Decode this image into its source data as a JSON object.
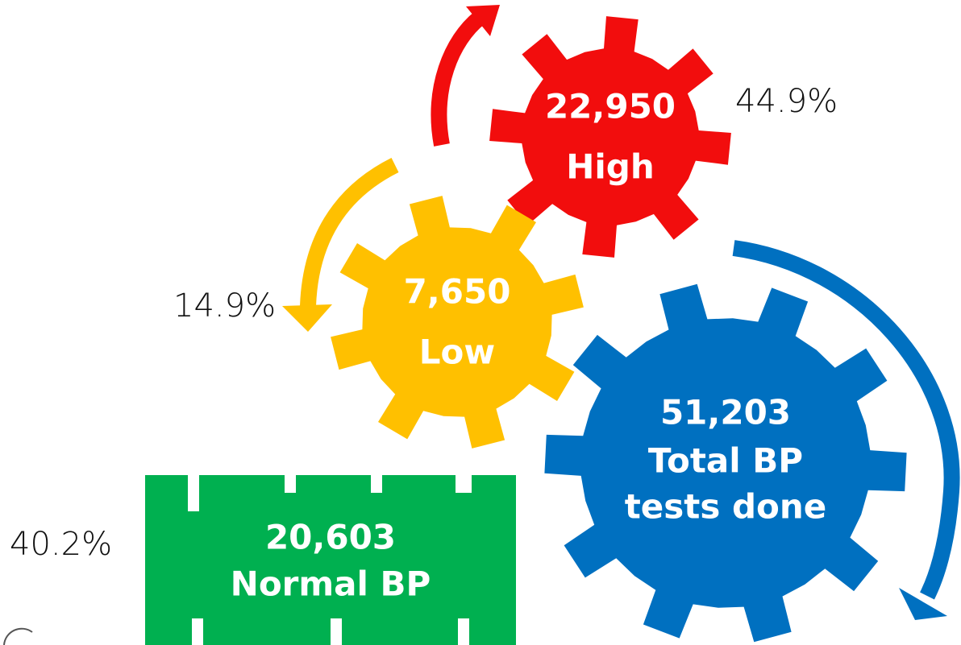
{
  "nodes": [
    {
      "value": "22,950",
      "label": "High",
      "share": "44.9%"
    },
    {
      "value": "7,650",
      "label": "Low",
      "share": "14.9%"
    },
    {
      "value": "51,203",
      "label": [
        "Total BP",
        "tests done"
      ]
    },
    {
      "value": "20,603",
      "label": "Normal BP",
      "share": "40.2%"
    }
  ]
}
